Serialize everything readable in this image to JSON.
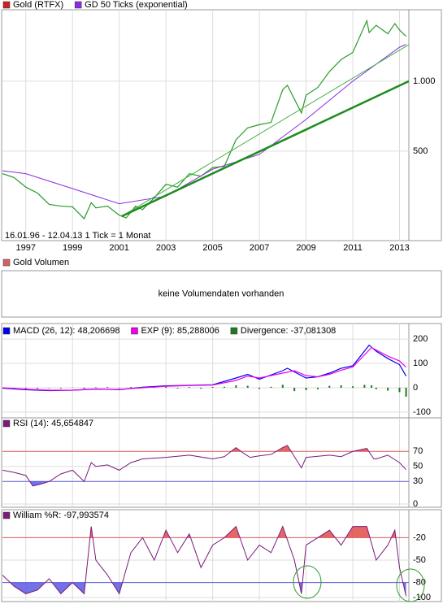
{
  "chart_data": [
    {
      "type": "line",
      "log_scale": true,
      "ylim": [
        206,
        2030
      ],
      "yticks": [
        500,
        {
          "value": 1000,
          "label": "1.000"
        }
      ],
      "xlim": [
        1996.0,
        2013.4
      ],
      "xticks": [
        1997,
        1999,
        2001,
        2003,
        2005,
        2007,
        2009,
        2011,
        2013
      ],
      "annotation": "16.01.96 - 12.04.13   1 Tick = 1 Monat",
      "series": [
        {
          "name": "Gold (RTFX)",
          "color": "#2a9a2a",
          "legend_color": "#cc2222",
          "width": 1.2,
          "x": [
            1996.0,
            1996.5,
            1997.0,
            1997.5,
            1998.0,
            1998.5,
            1999.0,
            1999.5,
            1999.8,
            2000.0,
            2000.5,
            2001.0,
            2001.3,
            2001.7,
            2002.0,
            2002.5,
            2003.0,
            2003.5,
            2004.0,
            2004.5,
            2005.0,
            2005.5,
            2006.0,
            2006.5,
            2007.0,
            2007.5,
            2008.0,
            2008.2,
            2008.8,
            2009.0,
            2009.5,
            2010.0,
            2010.5,
            2011.0,
            2011.6,
            2011.7,
            2012.0,
            2012.5,
            2012.8,
            2013.0,
            2013.28
          ],
          "values": [
            400,
            385,
            350,
            330,
            295,
            290,
            288,
            256,
            300,
            285,
            290,
            265,
            258,
            290,
            280,
            315,
            360,
            350,
            400,
            390,
            425,
            430,
            560,
            630,
            650,
            665,
            920,
            960,
            730,
            870,
            940,
            1100,
            1240,
            1330,
            1820,
            1620,
            1740,
            1600,
            1770,
            1660,
            1560
          ]
        },
        {
          "name": "GD 50 Ticks (exponential)",
          "color": "#8a2be2",
          "width": 1,
          "x": [
            1996.0,
            1997.0,
            1999.0,
            2001.0,
            2003.0,
            2005.0,
            2007.0,
            2009.0,
            2011.0,
            2013.0,
            2013.28
          ],
          "values": [
            412,
            400,
            345,
            297,
            320,
            418,
            484,
            685,
            1000,
            1400,
            1440
          ]
        },
        {
          "color": "#44b044",
          "width": 1,
          "x": [
            2001.1,
            2013.4
          ],
          "values": [
            262,
            1437
          ]
        },
        {
          "color": "#1e8c1e",
          "width": 2.5,
          "x": [
            2001.1,
            2013.4
          ],
          "values": [
            262,
            1000
          ]
        }
      ]
    },
    {
      "type": "empty",
      "title": "Gold Volumen",
      "legend_color": "#cc6666",
      "note": "keine Volumendaten vorhanden"
    },
    {
      "type": "line",
      "ylim": [
        -117,
        217
      ],
      "yticks": [
        -100,
        0,
        100,
        200
      ],
      "xlim": [
        1996.0,
        2013.4
      ],
      "series": [
        {
          "name": "MACD (26, 12): 48,206698",
          "color": "#0000ee",
          "width": 1.2,
          "x": [
            1996.0,
            1997.0,
            1998.0,
            1999.0,
            2000.0,
            2001.0,
            2002.0,
            2003.0,
            2004.0,
            2005.0,
            2006.0,
            2006.5,
            2007.0,
            2008.0,
            2008.2,
            2009.0,
            2009.5,
            2010.0,
            2010.5,
            2011.0,
            2011.7,
            2012.0,
            2012.5,
            2013.0,
            2013.28
          ],
          "values": [
            -2,
            -8,
            -12,
            -10,
            -5,
            -8,
            2,
            8,
            10,
            12,
            40,
            55,
            35,
            70,
            80,
            40,
            45,
            60,
            80,
            90,
            175,
            150,
            120,
            95,
            48
          ]
        },
        {
          "name": "EXP (9): 85,288006",
          "color": "#ee00ee",
          "width": 1.2,
          "x": [
            1996.0,
            1997.0,
            1998.0,
            1999.0,
            2000.0,
            2001.0,
            2002.0,
            2003.0,
            2004.0,
            2005.0,
            2006.0,
            2006.5,
            2007.0,
            2008.0,
            2008.5,
            2009.0,
            2009.5,
            2010.0,
            2010.5,
            2011.0,
            2011.8,
            2012.0,
            2012.5,
            2013.0,
            2013.28
          ],
          "values": [
            0,
            -6,
            -10,
            -10,
            -6,
            -7,
            0,
            6,
            9,
            11,
            30,
            48,
            40,
            60,
            70,
            50,
            45,
            55,
            72,
            85,
            165,
            155,
            130,
            110,
            85
          ]
        },
        {
          "name": "Divergence: -37,081308",
          "color": "#1e7a1e",
          "kind": "bar",
          "x": [
            1996.5,
            1997.0,
            1997.5,
            1998.0,
            1998.5,
            1999.0,
            1999.5,
            2000.0,
            2000.5,
            2001.0,
            2001.5,
            2002.0,
            2002.5,
            2003.0,
            2003.5,
            2004.0,
            2004.5,
            2005.0,
            2005.5,
            2006.0,
            2006.5,
            2007.0,
            2007.5,
            2008.0,
            2008.5,
            2009.0,
            2009.5,
            2010.0,
            2010.5,
            2011.0,
            2011.5,
            2011.8,
            2012.0,
            2012.5,
            2013.0,
            2013.28
          ],
          "values": [
            -2,
            -3,
            -4,
            -2,
            -3,
            1,
            -4,
            2,
            3,
            -2,
            3,
            4,
            3,
            4,
            -3,
            3,
            -4,
            3,
            4,
            10,
            8,
            -5,
            4,
            12,
            -14,
            -10,
            -6,
            8,
            10,
            6,
            12,
            10,
            -6,
            -12,
            -18,
            -37
          ]
        }
      ]
    },
    {
      "type": "line",
      "ylim": [
        0,
        100
      ],
      "yticks": [
        0,
        30,
        50,
        70
      ],
      "xlim": [
        1996.0,
        2013.4
      ],
      "hlines": [
        {
          "value": 70,
          "color": "#e06060",
          "fill": "#e04040"
        },
        {
          "value": 30,
          "color": "#6060e0",
          "fill": "#5050e0"
        }
      ],
      "series": [
        {
          "name": "RSI (14): 45,654847",
          "color": "#7a1a7a",
          "width": 1,
          "x": [
            1996.0,
            1996.5,
            1997.0,
            1997.3,
            1997.6,
            1998.0,
            1998.5,
            1999.0,
            1999.5,
            1999.8,
            2000.0,
            2000.5,
            2001.0,
            2001.5,
            2002.0,
            2003.0,
            2004.0,
            2005.0,
            2005.5,
            2006.0,
            2006.3,
            2006.6,
            2007.0,
            2007.5,
            2008.0,
            2008.2,
            2008.8,
            2009.0,
            2010.0,
            2010.5,
            2011.0,
            2011.6,
            2011.9,
            2012.0,
            2012.5,
            2013.0,
            2013.28
          ],
          "values": [
            45,
            42,
            38,
            24,
            26,
            30,
            40,
            45,
            30,
            55,
            50,
            52,
            45,
            55,
            60,
            62,
            65,
            60,
            63,
            75,
            68,
            62,
            64,
            66,
            75,
            78,
            48,
            62,
            65,
            63,
            70,
            74,
            60,
            60,
            65,
            55,
            45.6
          ]
        }
      ]
    },
    {
      "type": "line",
      "ylim": [
        -100,
        0
      ],
      "yticks": [
        -20,
        -50,
        -80,
        -100
      ],
      "xlim": [
        1996.0,
        2013.4
      ],
      "hlines": [
        {
          "value": -20,
          "color": "#e06060",
          "fill": "#e04040",
          "side": "above"
        },
        {
          "value": -80,
          "color": "#6060e0",
          "fill": "#5050e0",
          "side": "below"
        }
      ],
      "series": [
        {
          "name": "William %R: -97,993574",
          "color": "#7a1a7a",
          "width": 1,
          "x": [
            1996.0,
            1996.5,
            1997.0,
            1997.5,
            1998.0,
            1998.5,
            1999.0,
            1999.5,
            1999.8,
            2000.0,
            2000.5,
            2001.0,
            2001.5,
            2002.0,
            2002.5,
            2003.0,
            2003.5,
            2004.0,
            2004.5,
            2005.0,
            2005.5,
            2006.0,
            2006.5,
            2007.0,
            2007.5,
            2008.0,
            2008.5,
            2008.8,
            2009.0,
            2009.5,
            2010.0,
            2010.5,
            2011.0,
            2011.6,
            2012.0,
            2012.5,
            2012.8,
            2013.0,
            2013.28
          ],
          "values": [
            -70,
            -85,
            -95,
            -90,
            -75,
            -95,
            -80,
            -95,
            -5,
            -50,
            -70,
            -95,
            -40,
            -20,
            -50,
            -10,
            -40,
            -15,
            -60,
            -30,
            -20,
            -5,
            -50,
            -30,
            -40,
            -5,
            -50,
            -95,
            -30,
            -20,
            -10,
            -30,
            -5,
            -5,
            -50,
            -30,
            -10,
            -60,
            -98
          ]
        }
      ]
    }
  ]
}
